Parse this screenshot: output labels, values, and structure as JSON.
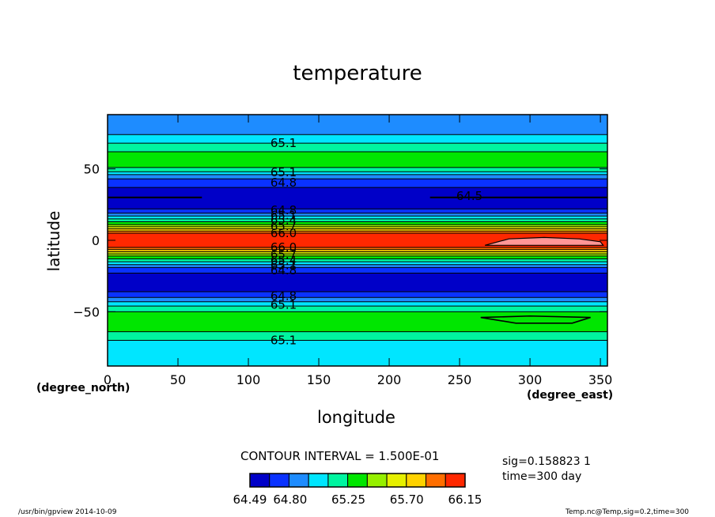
{
  "chart_data": {
    "type": "heatmap",
    "title": "temperature",
    "xlabel": "longitude",
    "ylabel": "latitude",
    "x_unit": "(degree_east)",
    "y_unit": "(degree_north)",
    "xlim": [
      0,
      355
    ],
    "ylim": [
      -88,
      88
    ],
    "x_ticks": [
      0,
      50,
      100,
      150,
      200,
      250,
      300,
      350
    ],
    "y_ticks": [
      50,
      0,
      -50
    ],
    "y_tick_labels": [
      "50",
      "0",
      "−50"
    ],
    "contour_interval_label": "CONTOUR INTERVAL = 1.500E-01",
    "levels": [
      64.49,
      64.65,
      64.8,
      64.95,
      65.1,
      65.25,
      65.4,
      65.55,
      65.7,
      65.85,
      66.0,
      66.15
    ],
    "level_colors": [
      "#0000c8",
      "#0a32ff",
      "#1e8cff",
      "#00e6ff",
      "#00f5a0",
      "#00e600",
      "#96f000",
      "#e6f000",
      "#ffd200",
      "#ff6e00",
      "#ff2800"
    ],
    "max_color": "#ff9696",
    "colorbar_tick_labels": [
      "64.49",
      "64.80",
      "65.25",
      "65.70",
      "66.15"
    ],
    "latitude_bands": [
      {
        "lat_from": 88,
        "lat_to": 74,
        "level_index": 2
      },
      {
        "lat_from": 74,
        "lat_to": 68,
        "level_index": 3
      },
      {
        "lat_from": 68,
        "lat_to": 62,
        "level_index": 4
      },
      {
        "lat_from": 62,
        "lat_to": 51,
        "level_index": 5
      },
      {
        "lat_from": 51,
        "lat_to": 48,
        "level_index": 4
      },
      {
        "lat_from": 48,
        "lat_to": 46,
        "level_index": 3
      },
      {
        "lat_from": 46,
        "lat_to": 43,
        "level_index": 2
      },
      {
        "lat_from": 43,
        "lat_to": 37,
        "level_index": 1
      },
      {
        "lat_from": 37,
        "lat_to": 22,
        "level_index": 0
      },
      {
        "lat_from": 22,
        "lat_to": 19,
        "level_index": 1
      },
      {
        "lat_from": 19,
        "lat_to": 17,
        "level_index": 2
      },
      {
        "lat_from": 17,
        "lat_to": 15,
        "level_index": 3
      },
      {
        "lat_from": 15,
        "lat_to": 13,
        "level_index": 4
      },
      {
        "lat_from": 13,
        "lat_to": 11,
        "level_index": 5
      },
      {
        "lat_from": 11,
        "lat_to": 9.5,
        "level_index": 6
      },
      {
        "lat_from": 9.5,
        "lat_to": 8,
        "level_index": 7
      },
      {
        "lat_from": 8,
        "lat_to": 6.5,
        "level_index": 8
      },
      {
        "lat_from": 6.5,
        "lat_to": 5,
        "level_index": 9
      },
      {
        "lat_from": 5,
        "lat_to": -5,
        "level_index": 10
      },
      {
        "lat_from": -5,
        "lat_to": -6.5,
        "level_index": 9
      },
      {
        "lat_from": -6.5,
        "lat_to": -8,
        "level_index": 8
      },
      {
        "lat_from": -8,
        "lat_to": -9.5,
        "level_index": 7
      },
      {
        "lat_from": -9.5,
        "lat_to": -11,
        "level_index": 6
      },
      {
        "lat_from": -11,
        "lat_to": -13,
        "level_index": 5
      },
      {
        "lat_from": -13,
        "lat_to": -15,
        "level_index": 4
      },
      {
        "lat_from": -15,
        "lat_to": -17,
        "level_index": 3
      },
      {
        "lat_from": -17,
        "lat_to": -19,
        "level_index": 2
      },
      {
        "lat_from": -19,
        "lat_to": -23,
        "level_index": 1
      },
      {
        "lat_from": -23,
        "lat_to": -36,
        "level_index": 0
      },
      {
        "lat_from": -36,
        "lat_to": -40,
        "level_index": 1
      },
      {
        "lat_from": -40,
        "lat_to": -43,
        "level_index": 2
      },
      {
        "lat_from": -43,
        "lat_to": -46,
        "level_index": 3
      },
      {
        "lat_from": -46,
        "lat_to": -50,
        "level_index": 4
      },
      {
        "lat_from": -50,
        "lat_to": -64,
        "level_index": 5
      },
      {
        "lat_from": -64,
        "lat_to": -70,
        "level_index": 4
      },
      {
        "lat_from": -70,
        "lat_to": -88,
        "level_index": 3
      }
    ],
    "contour_lines_lat": [
      74,
      68,
      62,
      51,
      48,
      46,
      43,
      37,
      22,
      19,
      17,
      15,
      13,
      11,
      9.5,
      8,
      6.5,
      5,
      -5,
      -6.5,
      -8,
      -9.5,
      -11,
      -13,
      -15,
      -17,
      -19,
      -23,
      -36,
      -40,
      -43,
      -46,
      -50,
      -64,
      -70
    ],
    "max_patch": {
      "level_index": 11,
      "points": [
        [
          268,
          -3.5
        ],
        [
          285,
          1
        ],
        [
          310,
          2
        ],
        [
          335,
          1
        ],
        [
          350,
          -1
        ],
        [
          352,
          -3.5
        ]
      ]
    },
    "closed_contour": {
      "points": [
        [
          265,
          -54
        ],
        [
          290,
          -58
        ],
        [
          330,
          -58
        ],
        [
          343,
          -54
        ],
        [
          300,
          -53
        ]
      ]
    },
    "line_64_5": {
      "lat": 30,
      "segments": [
        [
          0,
          67
        ],
        [
          229,
          355
        ]
      ]
    },
    "contour_labels": [
      {
        "text": "65.1",
        "lon": 125,
        "lat": 68
      },
      {
        "text": "65.1",
        "lon": 125,
        "lat": 47.5
      },
      {
        "text": "64.8",
        "lon": 125,
        "lat": 40.5
      },
      {
        "text": "64.5",
        "lon": 257,
        "lat": 31
      },
      {
        "text": "64.8",
        "lon": 125,
        "lat": 21
      },
      {
        "text": "65.1",
        "lon": 125,
        "lat": 17.5
      },
      {
        "text": "65.4",
        "lon": 125,
        "lat": 14
      },
      {
        "text": "65.7",
        "lon": 125,
        "lat": 10
      },
      {
        "text": "66.0",
        "lon": 125,
        "lat": 5
      },
      {
        "text": "66.0",
        "lon": 125,
        "lat": -5
      },
      {
        "text": "65.7",
        "lon": 125,
        "lat": -10
      },
      {
        "text": "65.4",
        "lon": 125,
        "lat": -14
      },
      {
        "text": "65.1",
        "lon": 125,
        "lat": -17.5
      },
      {
        "text": "64.8",
        "lon": 125,
        "lat": -21
      },
      {
        "text": "64.8",
        "lon": 125,
        "lat": -39
      },
      {
        "text": "65.1",
        "lon": 125,
        "lat": -45
      },
      {
        "text": "65.1",
        "lon": 125,
        "lat": -70
      }
    ]
  },
  "info": {
    "sig": "sig=0.158823 1",
    "time": "time=300 day"
  },
  "footer": {
    "left": "/usr/bin/gpview   2014-10-09",
    "right": "Temp.nc@Temp,sig=0.2,time=300"
  }
}
